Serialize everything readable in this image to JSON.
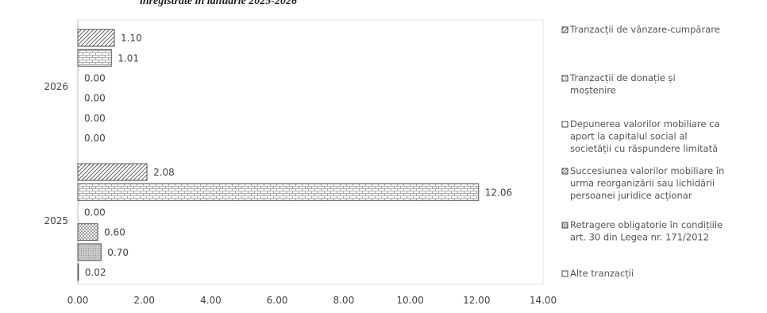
{
  "chart_data": {
    "type": "bar",
    "orientation": "horizontal",
    "title": "înregistrate în ianuarie 2025-2026",
    "xlabel": "",
    "ylabel": "",
    "xlim": [
      0,
      14
    ],
    "xticks": [
      "0.00",
      "2.00",
      "4.00",
      "6.00",
      "8.00",
      "10.00",
      "12.00",
      "14.00"
    ],
    "grid": false,
    "legend_position": "right",
    "categories": [
      "2026",
      "2025"
    ],
    "series": [
      {
        "name": "Tranzacții de vânzare-cumpărare",
        "pattern": "diagonal",
        "values": [
          1.1,
          2.08
        ],
        "labels": [
          "1.10",
          "2.08"
        ]
      },
      {
        "name": "Tranzacții de donație și moștenire",
        "pattern": "bricks",
        "values": [
          1.01,
          12.06
        ],
        "labels": [
          "1.01",
          "12.06"
        ]
      },
      {
        "name": "Depunerea valorilor mobiliare ca aport la capitalul social al societății cu răspundere limitată",
        "pattern": "none",
        "values": [
          0.0,
          0.0
        ],
        "labels": [
          "0.00",
          "0.00"
        ]
      },
      {
        "name": "Succesiunea valorilor mobiliare în urma reorganizării sau lichidării persoanei juridice acționar",
        "pattern": "checker",
        "values": [
          0.0,
          0.6
        ],
        "labels": [
          "0.00",
          "0.60"
        ]
      },
      {
        "name": "Retragere obligatorie în condițiile art. 30 din Legea nr. 171/2012",
        "pattern": "dots",
        "values": [
          0.0,
          0.7
        ],
        "labels": [
          "0.00",
          "0.70"
        ]
      },
      {
        "name": "Alte tranzacții",
        "pattern": "none",
        "values": [
          0.0,
          0.02
        ],
        "labels": [
          "0.00",
          "0.02"
        ]
      }
    ],
    "legend_lines": [
      [
        "Tranzacții de vânzare-cumpărare"
      ],
      [
        "Tranzacții de donație și",
        "moștenire"
      ],
      [
        "Depunerea valorilor mobiliare ca",
        "aport la capitalul social al",
        "societății cu răspundere limitată"
      ],
      [
        "Succesiunea valorilor mobiliare în",
        "urma reorganizării sau lichidării",
        "persoanei juridice acționar"
      ],
      [
        "Retragere obligatorie în condițiile",
        "art. 30 din Legea nr. 171/2012"
      ],
      [
        "Alte tranzacții"
      ]
    ]
  }
}
